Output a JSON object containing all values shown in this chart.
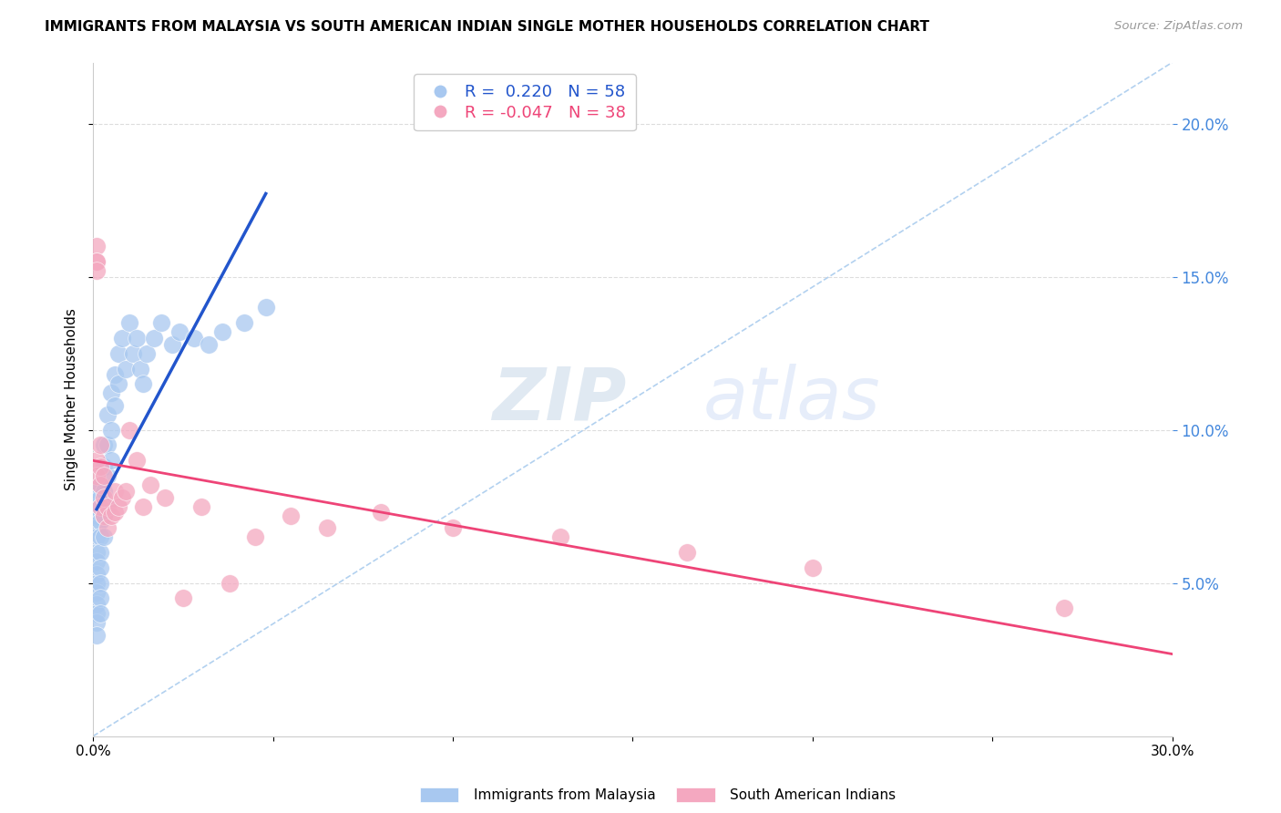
{
  "title": "IMMIGRANTS FROM MALAYSIA VS SOUTH AMERICAN INDIAN SINGLE MOTHER HOUSEHOLDS CORRELATION CHART",
  "source": "Source: ZipAtlas.com",
  "ylabel": "Single Mother Households",
  "legend_labels": [
    "Immigrants from Malaysia",
    "South American Indians"
  ],
  "legend_r": [
    0.22,
    -0.047
  ],
  "legend_n": [
    58,
    38
  ],
  "xlim": [
    0.0,
    0.3
  ],
  "ylim": [
    0.0,
    0.22
  ],
  "xticks": [
    0.0,
    0.05,
    0.1,
    0.15,
    0.2,
    0.25,
    0.3
  ],
  "yticks_right": [
    0.05,
    0.1,
    0.15,
    0.2
  ],
  "color_blue": "#a8c8f0",
  "color_pink": "#f4a8c0",
  "color_trendline_blue": "#2255cc",
  "color_trendline_pink": "#ee4477",
  "color_diagonal": "#aaccee",
  "blue_x": [
    0.001,
    0.001,
    0.001,
    0.001,
    0.001,
    0.001,
    0.001,
    0.001,
    0.001,
    0.001,
    0.001,
    0.001,
    0.001,
    0.001,
    0.001,
    0.002,
    0.002,
    0.002,
    0.002,
    0.002,
    0.002,
    0.002,
    0.002,
    0.002,
    0.002,
    0.003,
    0.003,
    0.003,
    0.003,
    0.003,
    0.004,
    0.004,
    0.004,
    0.004,
    0.005,
    0.005,
    0.005,
    0.006,
    0.006,
    0.007,
    0.007,
    0.008,
    0.009,
    0.01,
    0.011,
    0.012,
    0.013,
    0.014,
    0.015,
    0.017,
    0.019,
    0.022,
    0.024,
    0.028,
    0.032,
    0.036,
    0.042,
    0.048
  ],
  "blue_y": [
    0.08,
    0.078,
    0.075,
    0.072,
    0.068,
    0.065,
    0.06,
    0.057,
    0.053,
    0.05,
    0.047,
    0.043,
    0.04,
    0.037,
    0.033,
    0.082,
    0.078,
    0.075,
    0.07,
    0.065,
    0.06,
    0.055,
    0.05,
    0.045,
    0.04,
    0.095,
    0.088,
    0.08,
    0.072,
    0.065,
    0.105,
    0.095,
    0.085,
    0.075,
    0.112,
    0.1,
    0.09,
    0.118,
    0.108,
    0.125,
    0.115,
    0.13,
    0.12,
    0.135,
    0.125,
    0.13,
    0.12,
    0.115,
    0.125,
    0.13,
    0.135,
    0.128,
    0.132,
    0.13,
    0.128,
    0.132,
    0.135,
    0.14
  ],
  "pink_x": [
    0.001,
    0.001,
    0.001,
    0.001,
    0.001,
    0.001,
    0.002,
    0.002,
    0.002,
    0.002,
    0.003,
    0.003,
    0.003,
    0.004,
    0.004,
    0.005,
    0.006,
    0.006,
    0.007,
    0.008,
    0.009,
    0.01,
    0.012,
    0.014,
    0.016,
    0.02,
    0.025,
    0.03,
    0.038,
    0.045,
    0.055,
    0.065,
    0.08,
    0.1,
    0.13,
    0.165,
    0.2,
    0.27
  ],
  "pink_y": [
    0.16,
    0.155,
    0.155,
    0.152,
    0.09,
    0.085,
    0.095,
    0.088,
    0.082,
    0.075,
    0.085,
    0.078,
    0.072,
    0.075,
    0.068,
    0.072,
    0.08,
    0.073,
    0.075,
    0.078,
    0.08,
    0.1,
    0.09,
    0.075,
    0.082,
    0.078,
    0.045,
    0.075,
    0.05,
    0.065,
    0.072,
    0.068,
    0.073,
    0.068,
    0.065,
    0.06,
    0.055,
    0.042
  ]
}
